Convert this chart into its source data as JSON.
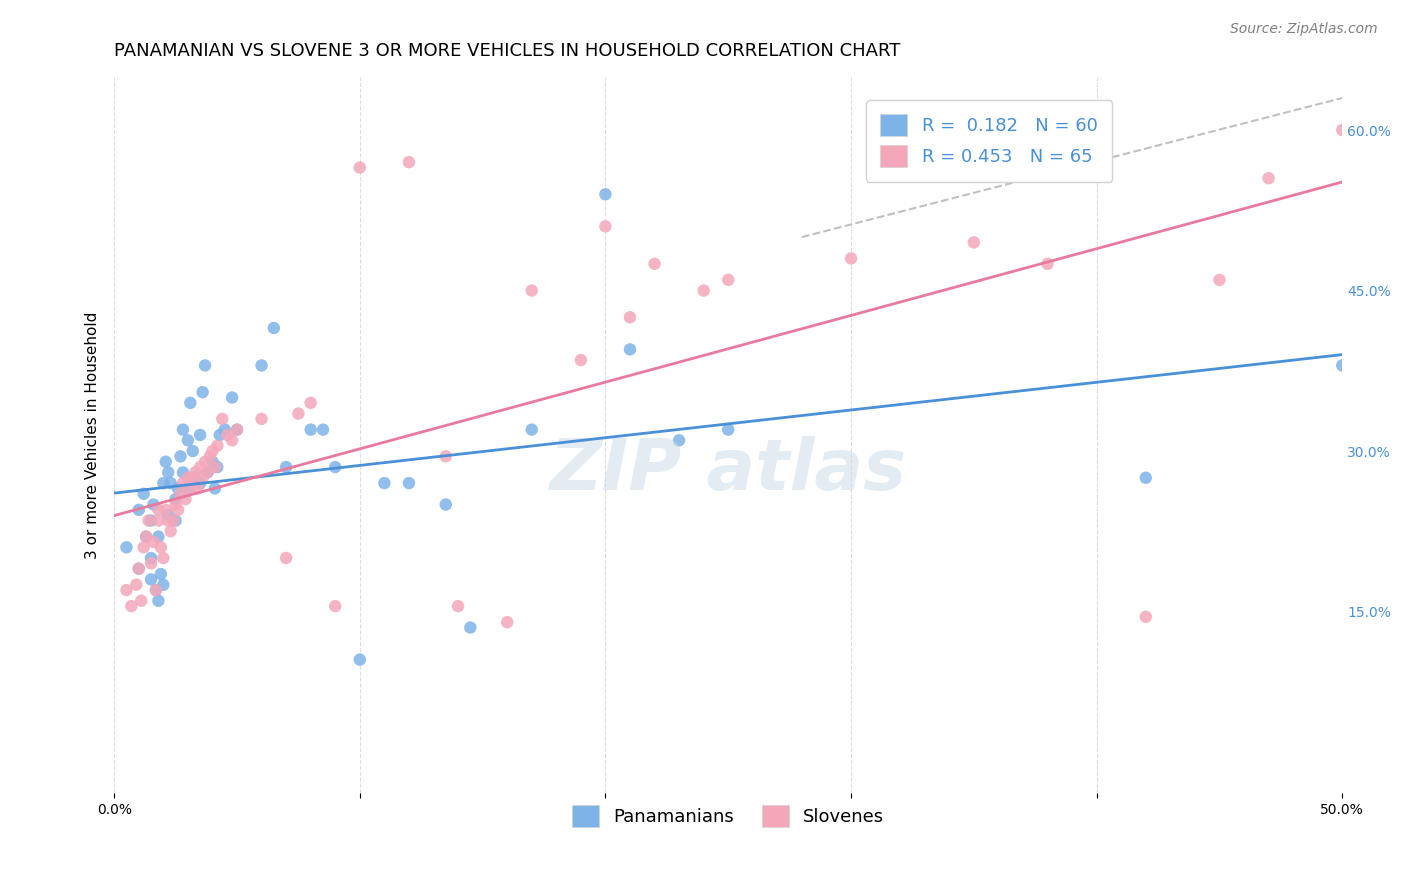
{
  "title": "PANAMANIAN VS SLOVENE 3 OR MORE VEHICLES IN HOUSEHOLD CORRELATION CHART",
  "source": "Source: ZipAtlas.com",
  "xlabel_bottom": "",
  "ylabel": "3 or more Vehicles in Household",
  "xlim": [
    0.0,
    0.5
  ],
  "ylim": [
    -0.02,
    0.65
  ],
  "xticks": [
    0.0,
    0.1,
    0.2,
    0.3,
    0.4,
    0.5
  ],
  "xtick_labels": [
    "0.0%",
    "",
    "",
    "",
    "",
    "50.0%"
  ],
  "yticks_left": [],
  "yticks_right": [
    0.15,
    0.3,
    0.45,
    0.6
  ],
  "ytick_right_labels": [
    "15.0%",
    "30.0%",
    "45.0%",
    "60.0%"
  ],
  "blue_color": "#7eb3e8",
  "pink_color": "#f4a7b9",
  "blue_line_color": "#4a90d9",
  "pink_line_color": "#e87a9f",
  "dashed_line_color": "#c0c0c0",
  "watermark_color": "#c8d8e8",
  "legend_R_blue": "R =  0.182",
  "legend_N_blue": "N = 60",
  "legend_R_pink": "R = 0.453",
  "legend_N_pink": "N = 65",
  "blue_R": 0.182,
  "blue_N": 60,
  "pink_R": 0.453,
  "pink_N": 65,
  "blue_scatter_x": [
    0.005,
    0.01,
    0.01,
    0.012,
    0.013,
    0.015,
    0.015,
    0.015,
    0.016,
    0.017,
    0.018,
    0.018,
    0.019,
    0.02,
    0.02,
    0.021,
    0.022,
    0.022,
    0.023,
    0.025,
    0.025,
    0.026,
    0.027,
    0.028,
    0.028,
    0.03,
    0.03,
    0.031,
    0.032,
    0.033,
    0.035,
    0.035,
    0.036,
    0.037,
    0.038,
    0.04,
    0.041,
    0.042,
    0.043,
    0.045,
    0.048,
    0.05,
    0.06,
    0.065,
    0.07,
    0.08,
    0.085,
    0.09,
    0.1,
    0.11,
    0.12,
    0.135,
    0.145,
    0.17,
    0.2,
    0.21,
    0.23,
    0.25,
    0.42,
    0.5
  ],
  "blue_scatter_y": [
    0.21,
    0.19,
    0.245,
    0.26,
    0.22,
    0.18,
    0.2,
    0.235,
    0.25,
    0.17,
    0.16,
    0.22,
    0.185,
    0.175,
    0.27,
    0.29,
    0.24,
    0.28,
    0.27,
    0.235,
    0.255,
    0.265,
    0.295,
    0.32,
    0.28,
    0.265,
    0.31,
    0.345,
    0.3,
    0.275,
    0.315,
    0.27,
    0.355,
    0.38,
    0.28,
    0.29,
    0.265,
    0.285,
    0.315,
    0.32,
    0.35,
    0.32,
    0.38,
    0.415,
    0.285,
    0.32,
    0.32,
    0.285,
    0.105,
    0.27,
    0.27,
    0.25,
    0.135,
    0.32,
    0.54,
    0.395,
    0.31,
    0.32,
    0.275,
    0.38
  ],
  "pink_scatter_x": [
    0.005,
    0.007,
    0.009,
    0.01,
    0.011,
    0.012,
    0.013,
    0.014,
    0.015,
    0.016,
    0.017,
    0.018,
    0.018,
    0.019,
    0.02,
    0.021,
    0.022,
    0.023,
    0.024,
    0.025,
    0.026,
    0.027,
    0.028,
    0.029,
    0.03,
    0.031,
    0.032,
    0.033,
    0.034,
    0.035,
    0.036,
    0.037,
    0.038,
    0.039,
    0.04,
    0.041,
    0.042,
    0.044,
    0.046,
    0.048,
    0.05,
    0.06,
    0.07,
    0.075,
    0.08,
    0.09,
    0.1,
    0.12,
    0.135,
    0.14,
    0.16,
    0.17,
    0.19,
    0.2,
    0.21,
    0.22,
    0.24,
    0.25,
    0.3,
    0.35,
    0.38,
    0.42,
    0.45,
    0.47,
    0.5
  ],
  "pink_scatter_y": [
    0.17,
    0.155,
    0.175,
    0.19,
    0.16,
    0.21,
    0.22,
    0.235,
    0.195,
    0.215,
    0.17,
    0.235,
    0.245,
    0.21,
    0.2,
    0.245,
    0.235,
    0.225,
    0.235,
    0.25,
    0.245,
    0.26,
    0.27,
    0.255,
    0.275,
    0.265,
    0.275,
    0.28,
    0.265,
    0.285,
    0.275,
    0.29,
    0.28,
    0.295,
    0.3,
    0.285,
    0.305,
    0.33,
    0.315,
    0.31,
    0.32,
    0.33,
    0.2,
    0.335,
    0.345,
    0.155,
    0.565,
    0.57,
    0.295,
    0.155,
    0.14,
    0.45,
    0.385,
    0.51,
    0.425,
    0.475,
    0.45,
    0.46,
    0.48,
    0.495,
    0.475,
    0.145,
    0.46,
    0.555,
    0.6
  ],
  "background_color": "#ffffff",
  "grid_color": "#dddddd",
  "title_fontsize": 13,
  "source_fontsize": 10,
  "axis_label_fontsize": 11,
  "tick_fontsize": 10,
  "legend_fontsize": 13
}
